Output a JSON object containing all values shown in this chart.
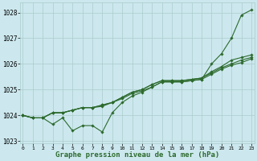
{
  "xlabel": "Graphe pression niveau de la mer (hPa)",
  "background_color": "#cce8ee",
  "grid_color": "#aacccc",
  "line_color": "#2d6a2d",
  "x": [
    0,
    1,
    2,
    3,
    4,
    5,
    6,
    7,
    8,
    9,
    10,
    11,
    12,
    13,
    14,
    15,
    16,
    17,
    18,
    19,
    20,
    21,
    22,
    23
  ],
  "line1": [
    1024.0,
    1023.9,
    1023.9,
    1023.65,
    1023.9,
    1023.4,
    1023.6,
    1023.6,
    1023.35,
    1024.1,
    1024.5,
    1024.75,
    1024.9,
    1025.1,
    1025.3,
    1025.3,
    1025.3,
    1025.35,
    1025.4,
    1026.0,
    1026.4,
    1027.0,
    1027.9,
    1028.1
  ],
  "line2": [
    1024.0,
    1023.9,
    1023.9,
    1024.1,
    1024.1,
    1024.2,
    1024.3,
    1024.3,
    1024.4,
    1024.5,
    1024.7,
    1024.9,
    1025.0,
    1025.2,
    1025.35,
    1025.35,
    1025.35,
    1025.4,
    1025.45,
    1025.7,
    1025.9,
    1026.15,
    1026.25,
    1026.35
  ],
  "line3": [
    1024.0,
    1023.9,
    1023.9,
    1024.1,
    1024.1,
    1024.2,
    1024.3,
    1024.3,
    1024.4,
    1024.5,
    1024.7,
    1024.9,
    1025.0,
    1025.2,
    1025.35,
    1025.35,
    1025.35,
    1025.4,
    1025.45,
    1025.65,
    1025.85,
    1026.0,
    1026.15,
    1026.25
  ],
  "line4": [
    1024.0,
    1023.9,
    1023.9,
    1024.1,
    1024.1,
    1024.2,
    1024.3,
    1024.3,
    1024.35,
    1024.5,
    1024.65,
    1024.85,
    1024.95,
    1025.1,
    1025.3,
    1025.3,
    1025.3,
    1025.35,
    1025.4,
    1025.6,
    1025.8,
    1025.95,
    1026.05,
    1026.2
  ],
  "ylim": [
    1022.9,
    1028.4
  ],
  "yticks": [
    1023,
    1024,
    1025,
    1026,
    1027,
    1028
  ],
  "xtick_fontsize": 4.5,
  "ytick_fontsize": 5.5,
  "xlabel_fontsize": 6.5,
  "marker": "D",
  "marker_size": 1.8,
  "line_width": 0.8
}
